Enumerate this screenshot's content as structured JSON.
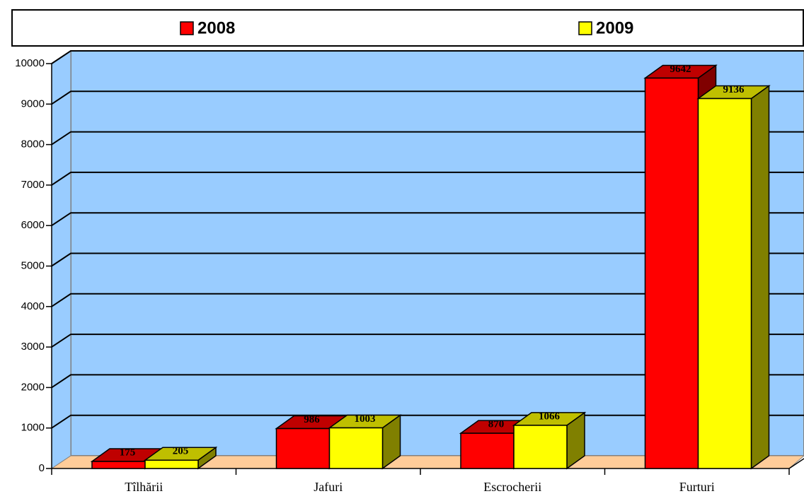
{
  "chart_data": {
    "type": "bar3d",
    "categories": [
      "Tîlhării",
      "Jafuri",
      "Escrocherii",
      "Furturi"
    ],
    "series": [
      {
        "name": "2008",
        "color": "#ff0000",
        "values": [
          175,
          986,
          870,
          9642
        ]
      },
      {
        "name": "2009",
        "color": "#ffff00",
        "values": [
          205,
          1003,
          1066,
          9136
        ]
      }
    ],
    "ylim": [
      0,
      10000
    ],
    "yticks": [
      0,
      1000,
      2000,
      3000,
      4000,
      5000,
      6000,
      7000,
      8000,
      9000,
      10000
    ],
    "grid": true,
    "legend": "top"
  }
}
